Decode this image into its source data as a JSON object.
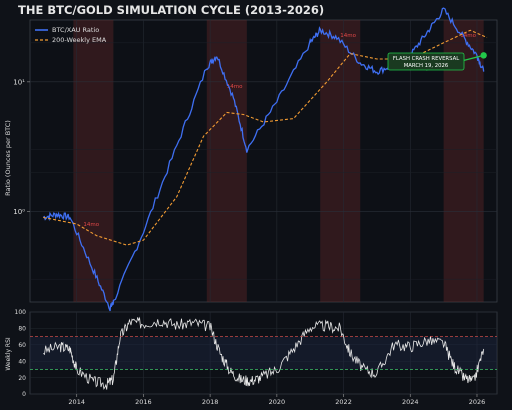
{
  "chart_data": [
    {
      "type": "line",
      "title": "THE BTC/GOLD SIMULATION CYCLE (2013-2026)",
      "ylabel": "Ratio (Ounces per BTC)",
      "yscale": "log",
      "ylim": [
        0.2,
        30
      ],
      "xlim": [
        2012.6,
        2026.6
      ],
      "ytick_labels": [
        "10⁰",
        "10¹"
      ],
      "ytick_values": [
        1,
        10
      ],
      "xtick_values": [
        2014,
        2016,
        2018,
        2020,
        2022,
        2024,
        2026
      ],
      "xtick_labels": [
        "2014",
        "2016",
        "2018",
        "2020",
        "2022",
        "2024",
        "2026"
      ],
      "grid": true,
      "legend_placement": "top-left",
      "colors": {
        "background": "#0f1218",
        "ratio": "#3f6ff2",
        "ema": "#f39c33",
        "shade": "#5a2626",
        "annotation": "#22c84a",
        "cycle_label": "#e04848",
        "text": "#e6e6e6"
      },
      "series": [
        {
          "name": "BTC/XAU Ratio",
          "x": [
            2013.0,
            2013.4,
            2013.8,
            2014.5,
            2015.0,
            2015.1,
            2016.0,
            2017.0,
            2017.9,
            2018.2,
            2018.7,
            2019.1,
            2020.0,
            2021.0,
            2021.3,
            2021.8,
            2022.5,
            2023.0,
            2023.5,
            2024.0,
            2024.5,
            2025.0,
            2025.6,
            2026.0,
            2026.2
          ],
          "y": [
            0.9,
            0.95,
            0.9,
            0.35,
            0.18,
            0.2,
            0.7,
            3.2,
            13.0,
            16.0,
            7.5,
            3.0,
            7.0,
            20.0,
            25.0,
            22.0,
            14.0,
            12.0,
            13.5,
            16.0,
            24.0,
            36.0,
            22.0,
            16.0,
            12.0
          ]
        },
        {
          "name": "200-Weekly EMA",
          "x": [
            2013.0,
            2014.0,
            2014.6,
            2015.5,
            2016.0,
            2017.0,
            2017.8,
            2018.5,
            2019.0,
            2019.6,
            2020.5,
            2021.5,
            2022.2,
            2023.0,
            2024.0,
            2025.0,
            2025.8,
            2026.3
          ],
          "y": [
            0.9,
            0.8,
            0.65,
            0.55,
            0.6,
            1.3,
            3.8,
            5.8,
            5.6,
            4.9,
            5.2,
            10.0,
            16.5,
            15.0,
            15.0,
            20.0,
            25.0,
            22.0
          ]
        }
      ],
      "shaded_periods": [
        {
          "start": 2013.9,
          "end": 2015.1,
          "label": "14mo"
        },
        {
          "start": 2017.9,
          "end": 2019.1,
          "label": "14mo"
        },
        {
          "start": 2021.3,
          "end": 2022.5,
          "label": "14mo"
        },
        {
          "start": 2025.0,
          "end": 2026.2,
          "label": "14mo"
        }
      ],
      "annotations": [
        {
          "text": "FLASH CRASH REVERSAL\nMARCH 19, 2026",
          "x": 2026.2,
          "y": 16.0
        }
      ]
    },
    {
      "type": "line",
      "ylabel": "Weekly RSI",
      "ylim": [
        0,
        100
      ],
      "ytick_values": [
        0,
        20,
        40,
        60,
        80,
        100
      ],
      "reference_lines": [
        70,
        30
      ],
      "series": [
        {
          "name": "",
          "x": [
            2013.0,
            2013.5,
            2013.8,
            2014.0,
            2014.5,
            2014.9,
            2015.1,
            2015.3,
            2015.6,
            2016.0,
            2016.5,
            2017.0,
            2017.5,
            2018.0,
            2018.3,
            2018.6,
            2018.9,
            2019.2,
            2019.5,
            2020.0,
            2020.5,
            2021.0,
            2021.5,
            2021.9,
            2022.2,
            2022.6,
            2023.0,
            2023.5,
            2024.0,
            2024.5,
            2025.0,
            2025.3,
            2025.6,
            2025.9,
            2026.2
          ],
          "y": [
            52,
            58,
            55,
            30,
            15,
            12,
            18,
            70,
            88,
            86,
            90,
            84,
            87,
            82,
            50,
            28,
            18,
            16,
            20,
            30,
            55,
            82,
            83,
            80,
            50,
            30,
            25,
            60,
            58,
            65,
            62,
            35,
            20,
            15,
            55
          ]
        }
      ]
    }
  ]
}
